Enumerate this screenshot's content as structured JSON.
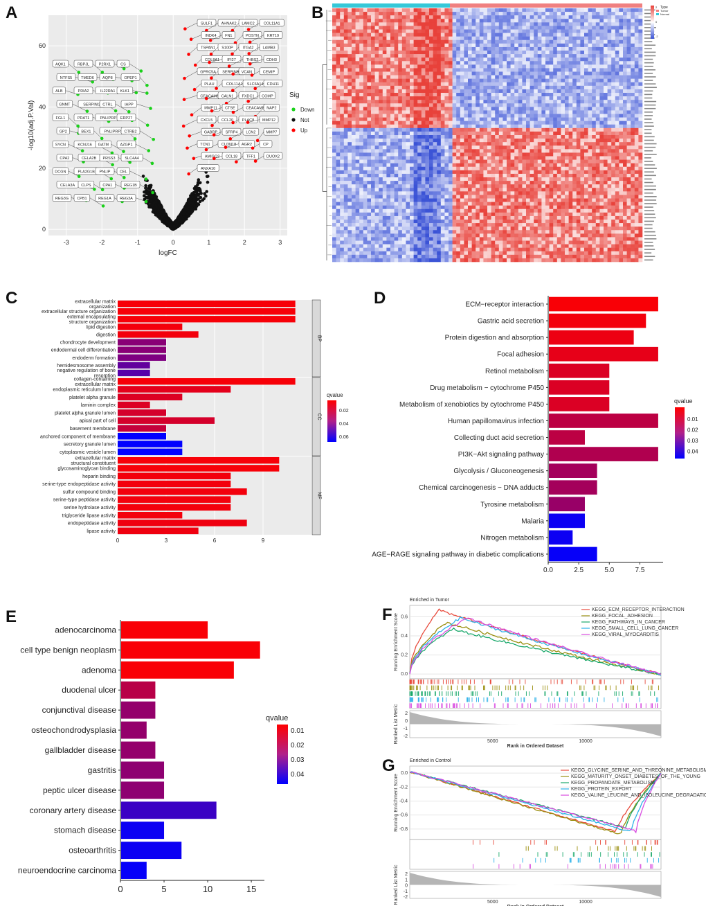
{
  "panels": {
    "A": "A",
    "B": "B",
    "C": "C",
    "D": "D",
    "E": "E",
    "F": "F",
    "G": "G"
  },
  "colors": {
    "red": "#ff0000",
    "green": "#1ad11a",
    "black": "#111111",
    "blue": "#0000ff",
    "heatRed": "#e8413a",
    "heatBlue": "#3b53d6",
    "gsea1": "#e84a3c",
    "gsea2": "#9a8e0e",
    "gsea3": "#1aa86b",
    "gsea4": "#2bb0e8",
    "gsea5": "#d84be0"
  },
  "chart_data": [
    {
      "id": "A",
      "type": "scatter",
      "xlabel": "logFC",
      "ylabel": "-log10(adj.P.Val)",
      "xlim": [
        -3.5,
        3.2
      ],
      "ylim": [
        -2,
        70
      ],
      "xticks": [
        "-3",
        "-2",
        "-1",
        "0",
        "1",
        "2",
        "3"
      ],
      "yticks": [
        "0",
        "20",
        "40",
        "60"
      ],
      "legend": {
        "title": "Sig",
        "items": [
          "Down",
          "Not",
          "Up"
        ]
      },
      "down_genes": [
        "AQK1",
        "RBPJL",
        "P2RX1",
        "CS",
        "NTFS5",
        "TMED6",
        "AQP8",
        "OPEP1",
        "ALB",
        "PDIA2",
        "IL22RA1",
        "KLK1",
        "GNMT",
        "SERPINI2",
        "CTRL",
        "IAPP",
        "FGL1",
        "PDAT1",
        "PNLIPRP1",
        "ERP27",
        "GP2",
        "BEX1",
        "PNLIPRP2",
        "CTRB2",
        "SYCN",
        "KCNJ16",
        "GATM",
        "AZGP1",
        "CPA2",
        "CELA2B",
        "PRSS3",
        "SLC4A4",
        "DCGN",
        "PLA2G1B",
        "PNLIP",
        "CEL",
        "CELA3A",
        "CLPS",
        "CPA1",
        "REG1B",
        "REG3G",
        "CPB1",
        "REG1A",
        "REG3A"
      ],
      "up_genes": [
        "SULF1",
        "AHNAK2",
        "LAMC2",
        "COL11A1",
        "INDK4",
        "FN1",
        "POSTN",
        "KRT19",
        "TSPAN1",
        "S100P",
        "ITGA2",
        "LAMB3",
        "COL8A1",
        "IFI27",
        "THBS2",
        "CDH3",
        "GPRC5A",
        "SERPINB5",
        "VCAN",
        "CEMIP",
        "PLAU",
        "COL11A1",
        "SLC6A14",
        "CDH11",
        "CEACAM6",
        "CALN1",
        "FXDC1",
        "COMP",
        "MMP11",
        "CTSE",
        "CEACAM5",
        "NAP2",
        "CXCL5",
        "CCL20",
        "PLAC8",
        "MMP12",
        "GABRP",
        "SFRP4",
        "LCN2",
        "MMP7",
        "TCN1",
        "CLDN18",
        "AGR2",
        "CP",
        "AMIGO2",
        "CCL18",
        "TFF1",
        "DUOX2",
        "ANXA10"
      ]
    },
    {
      "id": "B",
      "type": "heatmap",
      "legend": {
        "items": [
          "Type",
          "Tumor",
          "Normal"
        ],
        "ticks": [
          "2",
          "0",
          "-2"
        ]
      }
    },
    {
      "id": "C",
      "type": "bar",
      "title": "",
      "xticks": [
        "0",
        "3",
        "6",
        "9"
      ],
      "xlim": [
        0,
        12
      ],
      "legend": {
        "title": "qvalue",
        "ticks": [
          "0.02",
          "0.04",
          "0.06"
        ],
        "range": [
          0.005,
          0.07
        ]
      },
      "facets": [
        {
          "name": "BP",
          "bars": [
            {
              "label": [
                "extracellular matrix",
                "organization"
              ],
              "value": 11,
              "q": 0.007
            },
            {
              "label": [
                "extracellular structure organization"
              ],
              "value": 11,
              "q": 0.007
            },
            {
              "label": [
                "external encapsulating",
                "structure organization"
              ],
              "value": 11,
              "q": 0.007
            },
            {
              "label": [
                "lipid digestion"
              ],
              "value": 4,
              "q": 0.008
            },
            {
              "label": [
                "digestion"
              ],
              "value": 5,
              "q": 0.008
            },
            {
              "label": [
                "chondrocyte development"
              ],
              "value": 3,
              "q": 0.035
            },
            {
              "label": [
                "endodermal cell differentiation"
              ],
              "value": 3,
              "q": 0.035
            },
            {
              "label": [
                "endoderm formation"
              ],
              "value": 3,
              "q": 0.038
            },
            {
              "label": [
                "hemidesmosome assembly"
              ],
              "value": 2,
              "q": 0.045
            },
            {
              "label": [
                "negative regulation of bone",
                "resorption"
              ],
              "value": 2,
              "q": 0.048
            }
          ]
        },
        {
          "name": "CC",
          "bars": [
            {
              "label": [
                "collagen-containing",
                "extracellular matrix"
              ],
              "value": 11,
              "q": 0.007
            },
            {
              "label": [
                "endoplasmic reticulum lumen"
              ],
              "value": 7,
              "q": 0.012
            },
            {
              "label": [
                "platelet alpha granule"
              ],
              "value": 4,
              "q": 0.014
            },
            {
              "label": [
                "laminin complex"
              ],
              "value": 2,
              "q": 0.014
            },
            {
              "label": [
                "platelet alpha granule lumen"
              ],
              "value": 3,
              "q": 0.016
            },
            {
              "label": [
                "apical part of cell"
              ],
              "value": 6,
              "q": 0.016
            },
            {
              "label": [
                "basement membrane"
              ],
              "value": 3,
              "q": 0.02
            },
            {
              "label": [
                "anchored component of membrane"
              ],
              "value": 3,
              "q": 0.07
            },
            {
              "label": [
                "secretory granule lumen"
              ],
              "value": 4,
              "q": 0.07
            },
            {
              "label": [
                "cytoplasmic vesicle lumen"
              ],
              "value": 4,
              "q": 0.07
            }
          ]
        },
        {
          "name": "MF",
          "bars": [
            {
              "label": [
                "extracellular matrix",
                "structural constituent"
              ],
              "value": 10,
              "q": 0.007
            },
            {
              "label": [
                "glycosaminoglycan binding"
              ],
              "value": 10,
              "q": 0.007
            },
            {
              "label": [
                "heparin binding"
              ],
              "value": 7,
              "q": 0.008
            },
            {
              "label": [
                "serine-type endopeptidase activity"
              ],
              "value": 7,
              "q": 0.008
            },
            {
              "label": [
                "sulfur compound binding"
              ],
              "value": 8,
              "q": 0.008
            },
            {
              "label": [
                "serine-type peptidase activity"
              ],
              "value": 7,
              "q": 0.008
            },
            {
              "label": [
                "serine hydrolase activity"
              ],
              "value": 7,
              "q": 0.008
            },
            {
              "label": [
                "triglyceride lipase activity"
              ],
              "value": 4,
              "q": 0.008
            },
            {
              "label": [
                "endopeptidase activity"
              ],
              "value": 8,
              "q": 0.009
            },
            {
              "label": [
                "lipase activity"
              ],
              "value": 5,
              "q": 0.009
            }
          ]
        }
      ]
    },
    {
      "id": "D",
      "type": "bar",
      "xticks": [
        "0.0",
        "2.5",
        "5.0",
        "7.5"
      ],
      "xlim": [
        0,
        9.4
      ],
      "legend": {
        "title": "qvalue",
        "ticks": [
          "0.01",
          "0.02",
          "0.03",
          "0.04"
        ],
        "range": [
          0.003,
          0.045
        ]
      },
      "bars": [
        {
          "label": "ECM−receptor interaction",
          "value": 9,
          "q": 0.004
        },
        {
          "label": "Gastric acid secretion",
          "value": 8,
          "q": 0.005
        },
        {
          "label": "Protein digestion and absorption",
          "value": 7,
          "q": 0.006
        },
        {
          "label": "Focal adhesion",
          "value": 9,
          "q": 0.007
        },
        {
          "label": "Retinol metabolism",
          "value": 5,
          "q": 0.009
        },
        {
          "label": "Drug metabolism − cytochrome P450",
          "value": 5,
          "q": 0.009
        },
        {
          "label": "Metabolism of xenobiotics by cytochrome P450",
          "value": 5,
          "q": 0.009
        },
        {
          "label": "Human papillomavirus infection",
          "value": 9,
          "q": 0.014
        },
        {
          "label": "Collecting duct acid secretion",
          "value": 3,
          "q": 0.014
        },
        {
          "label": "PI3K−Akt signaling pathway",
          "value": 9,
          "q": 0.016
        },
        {
          "label": "Glycolysis / Gluconeogenesis",
          "value": 4,
          "q": 0.018
        },
        {
          "label": "Chemical carcinogenesis − DNA adducts",
          "value": 4,
          "q": 0.018
        },
        {
          "label": "Tyrosine metabolism",
          "value": 3,
          "q": 0.02
        },
        {
          "label": "Malaria",
          "value": 3,
          "q": 0.043
        },
        {
          "label": "Nitrogen metabolism",
          "value": 2,
          "q": 0.043
        },
        {
          "label": "AGE−RAGE signaling pathway in diabetic complications",
          "value": 4,
          "q": 0.044
        }
      ]
    },
    {
      "id": "E",
      "type": "bar",
      "xticks": [
        "0",
        "5",
        "10",
        "15"
      ],
      "xlim": [
        0,
        16.5
      ],
      "legend": {
        "title": "qvalue",
        "ticks": [
          "0.01",
          "0.02",
          "0.03",
          "0.04"
        ],
        "range": [
          0.002,
          0.045
        ]
      },
      "bars": [
        {
          "label": "adenocarcinoma",
          "value": 10,
          "q": 0.003
        },
        {
          "label": "cell type benign neoplasm",
          "value": 16,
          "q": 0.003
        },
        {
          "label": "adenoma",
          "value": 13,
          "q": 0.003
        },
        {
          "label": "duodenal ulcer",
          "value": 4,
          "q": 0.014
        },
        {
          "label": "conjunctival disease",
          "value": 4,
          "q": 0.02
        },
        {
          "label": "osteochondrodysplasia",
          "value": 3,
          "q": 0.02
        },
        {
          "label": "gallbladder disease",
          "value": 4,
          "q": 0.02
        },
        {
          "label": "gastritis",
          "value": 5,
          "q": 0.021
        },
        {
          "label": "peptic ulcer disease",
          "value": 5,
          "q": 0.021
        },
        {
          "label": "coronary artery disease",
          "value": 11,
          "q": 0.035
        },
        {
          "label": "stomach disease",
          "value": 5,
          "q": 0.043
        },
        {
          "label": "osteoarthritis",
          "value": 7,
          "q": 0.043
        },
        {
          "label": "neuroendocrine carcinoma",
          "value": 3,
          "q": 0.044
        }
      ]
    },
    {
      "id": "F",
      "type": "line",
      "title": "Enriched in Tumor",
      "ylabel": "Running Enrichment Score",
      "ylabel2": "Ranked List Metric",
      "xlabel": "Rank in Ordered Dataset",
      "xticks": [
        "5000",
        "10000"
      ],
      "yticks": [
        "0.6",
        "0.4",
        "0.2",
        "0.0"
      ],
      "y2ticks": [
        "2",
        "0",
        "-1",
        "-2"
      ],
      "series": [
        {
          "name": "KEGG_ECM_RECEPTOR_INTERACTION",
          "peak": 0.68
        },
        {
          "name": "KEGG_FOCAL_ADHESION",
          "peak": 0.55
        },
        {
          "name": "KEGG_PATHWAYS_IN_CANCER",
          "peak": 0.48
        },
        {
          "name": "KEGG_SMALL_CELL_LUNG_CANCER",
          "peak": 0.6
        },
        {
          "name": "KEGG_VIRAL_MYOCARDITIS",
          "peak": 0.6
        }
      ]
    },
    {
      "id": "G",
      "type": "line",
      "title": "Enriched in Control",
      "ylabel": "Running Enrichment Score",
      "ylabel2": "Ranked List Metric",
      "xlabel": "Rank in Ordered Dataset",
      "xticks": [
        "5000",
        "10000"
      ],
      "yticks": [
        "0.0",
        "-0.2",
        "-0.4",
        "-0.6",
        "-0.8"
      ],
      "y2ticks": [
        "2",
        "1",
        "0",
        "-1",
        "-2"
      ],
      "series": [
        {
          "name": "KEGG_GLYCINE_SERINE_AND_THREONINE_METABOLISM",
          "peak": -0.86
        },
        {
          "name": "KEGG_MATURITY_ONSET_DIABETES_OF_THE_YOUNG",
          "peak": -0.9
        },
        {
          "name": "KEGG_PROPANOATE_METABOLISM",
          "peak": -0.8
        },
        {
          "name": "KEGG_PROTEIN_EXPORT",
          "peak": -0.86
        },
        {
          "name": "KEGG_VALINE_LEUCINE_AND_ISOLEUCINE_DEGRADATION",
          "peak": -0.84
        }
      ]
    }
  ]
}
